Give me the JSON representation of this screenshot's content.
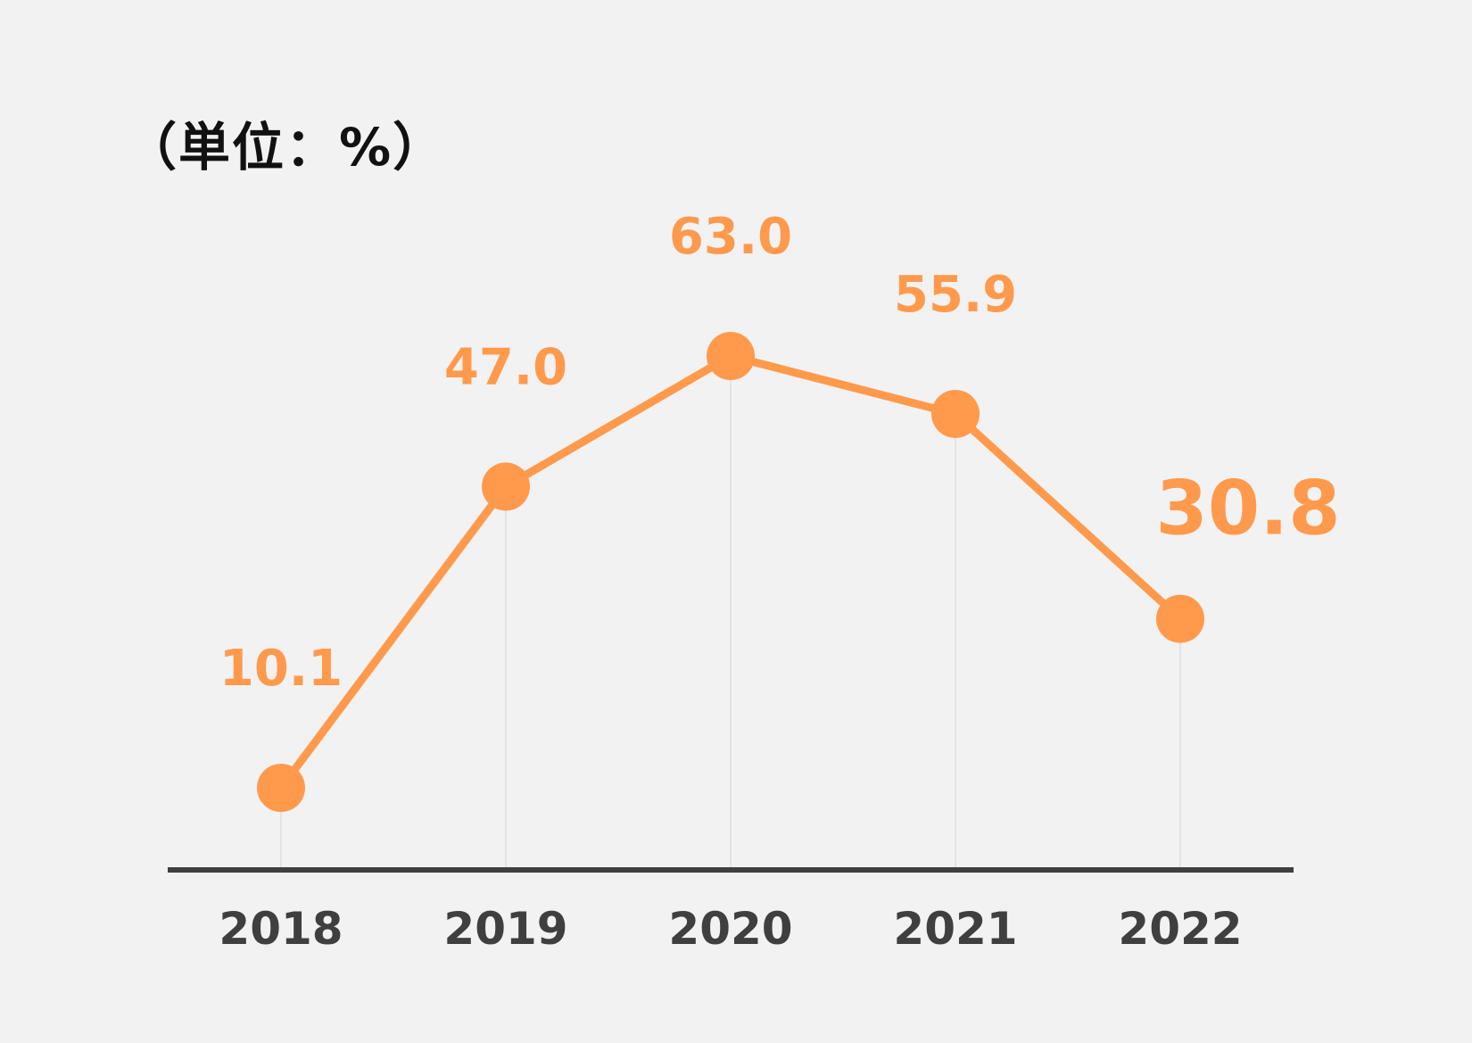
{
  "unit_label": "（単位：%）",
  "colors": {
    "background": "#f2f2f2",
    "series": "#ff9a4d",
    "axis": "#3f3f3f",
    "text": "#111111"
  },
  "chart_data": {
    "type": "line",
    "title": "",
    "xlabel": "",
    "ylabel": "",
    "unit": "%",
    "categories": [
      "2018",
      "2019",
      "2020",
      "2021",
      "2022"
    ],
    "series": [
      {
        "values": [
          10.1,
          47.0,
          63.0,
          55.9,
          30.8
        ]
      }
    ],
    "data_labels": [
      "10.1",
      "47.0",
      "63.0",
      "55.9",
      "30.8"
    ],
    "grid": false,
    "legend": "none"
  }
}
